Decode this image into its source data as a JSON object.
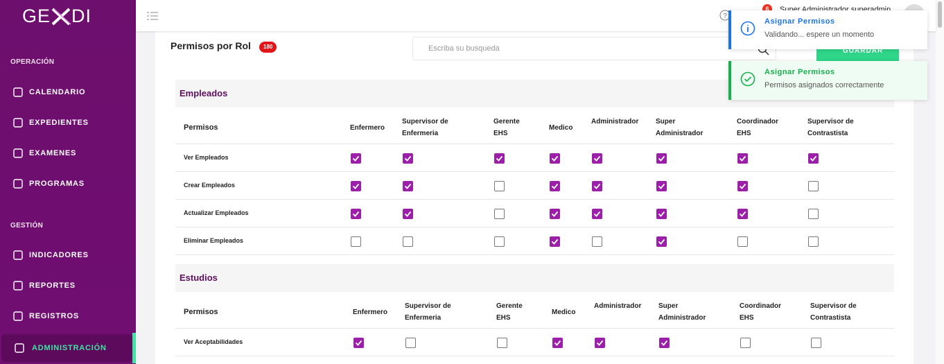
{
  "sidebar": {
    "logo": [
      "GE",
      "DI"
    ],
    "sections": [
      {
        "title": "OPERACIÓN",
        "items": [
          "CALENDARIO",
          "EXPEDIENTES",
          "EXAMENES",
          "PROGRAMAS"
        ]
      },
      {
        "title": "GESTIÓN",
        "items": [
          "INDICADORES",
          "REPORTES",
          "REGISTROS",
          "ADMINISTRACIÓN"
        ]
      }
    ],
    "active": [
      1,
      3
    ]
  },
  "header": {
    "badge": "6",
    "user": "Super Administrador superadmin"
  },
  "page": {
    "title": "Permisos por Rol",
    "count": "180",
    "search_placeholder": "Escriba su busqueda",
    "save_button": "GUARDAR"
  },
  "toasts": [
    {
      "kind": "info",
      "title": "Asignar Permisos",
      "message": "Validando... espere un momento"
    },
    {
      "kind": "success",
      "title": "Asignar Permisos",
      "message": "Permisos asignados correctamente"
    }
  ],
  "permissions_header": "Permisos",
  "roles": [
    "Enfermero",
    "Supervisor de Enfermeria",
    "Gerente EHS",
    "Medico",
    "Administrador",
    "Super Administrador",
    "Coordinador EHS",
    "Supervisor de Contrastista"
  ],
  "modules": [
    {
      "name": "Empleados",
      "permissions": [
        {
          "name": "Ver Empleados",
          "granted": [
            true,
            true,
            true,
            true,
            true,
            true,
            true,
            true
          ]
        },
        {
          "name": "Crear Empleados",
          "granted": [
            true,
            true,
            false,
            true,
            true,
            true,
            true,
            false
          ]
        },
        {
          "name": "Actualizar Empleados",
          "granted": [
            true,
            true,
            false,
            true,
            true,
            true,
            true,
            false
          ]
        },
        {
          "name": "Eliminar Empleados",
          "granted": [
            false,
            false,
            false,
            true,
            false,
            true,
            false,
            false
          ]
        }
      ]
    },
    {
      "name": "Estudios",
      "permissions": [
        {
          "name": "Ver Aceptabilidades",
          "granted": [
            true,
            false,
            false,
            true,
            true,
            true,
            false,
            false
          ]
        }
      ]
    }
  ]
}
